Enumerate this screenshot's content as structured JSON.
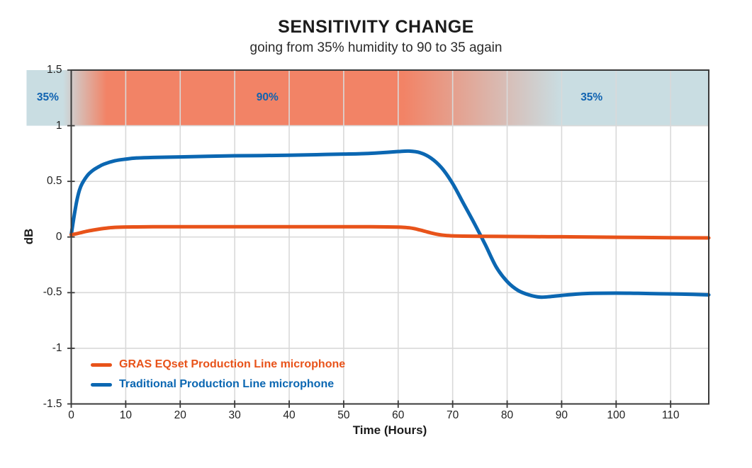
{
  "title": "SENSITIVITY CHANGE",
  "subtitle": "going from 35% humidity to 90 to 35 again",
  "colors": {
    "axis": "#3a3a3a",
    "grid": "#d9d9d9",
    "tick_label": "#1f1f1f",
    "title": "#1c1c1c",
    "orange_series": "#e8531a",
    "blue_series": "#0b67b2"
  },
  "axes": {
    "xlabel": "Time (Hours)",
    "ylabel": "dB",
    "x_tick_labels": [
      "0",
      "10",
      "20",
      "30",
      "40",
      "50",
      "60",
      "70",
      "80",
      "90",
      "100",
      "110"
    ],
    "y_tick_labels": [
      "1.5",
      "1",
      "0.5",
      "0",
      "-0.5",
      "-1",
      "-1.5"
    ]
  },
  "humidity_band": {
    "y_range_db": [
      1.0,
      1.5
    ],
    "x_start_hour": -8.2,
    "label_color": "#1063b1",
    "zones": [
      {
        "label": "35%",
        "color": "#c9dde2",
        "label_hour": -4.3,
        "solid_until_hour": -1.5
      },
      {
        "label": "90%",
        "color": "#f28366",
        "solid_from_hour": 6.5,
        "label_hour": 36,
        "solid_until_hour": 61
      },
      {
        "label": "35%",
        "color": "#c9dde2",
        "solid_from_hour": 90,
        "label_hour": 95.5
      }
    ]
  },
  "legend": {
    "items": [
      {
        "label": "GRAS EQset Production Line microphone",
        "color": "#e8531a"
      },
      {
        "label": "Traditional Production Line microphone",
        "color": "#0b67b2"
      }
    ]
  },
  "chart_data": {
    "type": "line",
    "title": "SENSITIVITY CHANGE",
    "subtitle": "going from 35% humidity to 90 to 35 again",
    "xlabel": "Time (Hours)",
    "ylabel": "dB",
    "xlim": [
      0,
      117
    ],
    "ylim": [
      -1.5,
      1.5
    ],
    "x_ticks": [
      0,
      10,
      20,
      30,
      40,
      50,
      60,
      70,
      80,
      90,
      100,
      110
    ],
    "y_ticks": [
      1.5,
      1,
      0.5,
      0,
      -0.5,
      -1,
      -1.5
    ],
    "grid": true,
    "legend_position": "inside lower-left",
    "series": [
      {
        "name": "GRAS EQset Production Line microphone",
        "color": "#e8531a",
        "points": [
          [
            0,
            0.02
          ],
          [
            1,
            0.03
          ],
          [
            2,
            0.042
          ],
          [
            3,
            0.053
          ],
          [
            4,
            0.062
          ],
          [
            5,
            0.07
          ],
          [
            6,
            0.077
          ],
          [
            7,
            0.083
          ],
          [
            8,
            0.087
          ],
          [
            10,
            0.09
          ],
          [
            12,
            0.091
          ],
          [
            15,
            0.092
          ],
          [
            20,
            0.092
          ],
          [
            25,
            0.092
          ],
          [
            30,
            0.092
          ],
          [
            35,
            0.092
          ],
          [
            40,
            0.092
          ],
          [
            45,
            0.092
          ],
          [
            50,
            0.092
          ],
          [
            55,
            0.092
          ],
          [
            58,
            0.091
          ],
          [
            60,
            0.089
          ],
          [
            61,
            0.087
          ],
          [
            62,
            0.083
          ],
          [
            63,
            0.075
          ],
          [
            64,
            0.063
          ],
          [
            65,
            0.05
          ],
          [
            66,
            0.037
          ],
          [
            67,
            0.026
          ],
          [
            68,
            0.018
          ],
          [
            69,
            0.013
          ],
          [
            70,
            0.01
          ],
          [
            72,
            0.008
          ],
          [
            75,
            0.006
          ],
          [
            80,
            0.005
          ],
          [
            85,
            0.003
          ],
          [
            90,
            0.002
          ],
          [
            95,
            0.0
          ],
          [
            100,
            -0.002
          ],
          [
            105,
            -0.004
          ],
          [
            110,
            -0.006
          ],
          [
            117,
            -0.008
          ]
        ]
      },
      {
        "name": "Traditional Production Line microphone",
        "color": "#0b67b2",
        "points": [
          [
            0,
            0.02
          ],
          [
            0.5,
            0.18
          ],
          [
            1,
            0.32
          ],
          [
            1.5,
            0.42
          ],
          [
            2,
            0.48
          ],
          [
            3,
            0.555
          ],
          [
            4,
            0.6
          ],
          [
            5,
            0.63
          ],
          [
            6,
            0.655
          ],
          [
            8,
            0.685
          ],
          [
            10,
            0.7
          ],
          [
            12,
            0.71
          ],
          [
            15,
            0.715
          ],
          [
            20,
            0.72
          ],
          [
            25,
            0.725
          ],
          [
            30,
            0.73
          ],
          [
            35,
            0.732
          ],
          [
            40,
            0.735
          ],
          [
            45,
            0.74
          ],
          [
            50,
            0.745
          ],
          [
            54,
            0.75
          ],
          [
            57,
            0.758
          ],
          [
            60,
            0.768
          ],
          [
            62,
            0.772
          ],
          [
            64,
            0.758
          ],
          [
            66,
            0.71
          ],
          [
            68,
            0.62
          ],
          [
            70,
            0.48
          ],
          [
            72,
            0.3
          ],
          [
            74,
            0.12
          ],
          [
            76,
            -0.07
          ],
          [
            78,
            -0.27
          ],
          [
            80,
            -0.4
          ],
          [
            82,
            -0.48
          ],
          [
            84,
            -0.52
          ],
          [
            86,
            -0.54
          ],
          [
            88,
            -0.535
          ],
          [
            90,
            -0.525
          ],
          [
            93,
            -0.512
          ],
          [
            96,
            -0.506
          ],
          [
            100,
            -0.504
          ],
          [
            104,
            -0.506
          ],
          [
            108,
            -0.51
          ],
          [
            112,
            -0.513
          ],
          [
            117,
            -0.52
          ]
        ]
      }
    ]
  }
}
